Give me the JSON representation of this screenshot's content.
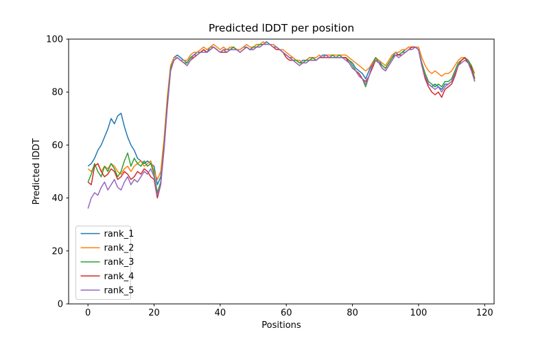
{
  "chart_data": {
    "type": "line",
    "title": "Predicted lDDT per position",
    "xlabel": "Positions",
    "ylabel": "Predicted lDDT",
    "x_is_index": true,
    "xlim": [
      -5.85,
      122.85
    ],
    "ylim": [
      0,
      100
    ],
    "xticks": [
      0,
      20,
      40,
      60,
      80,
      100,
      120
    ],
    "yticks": [
      0,
      20,
      40,
      60,
      80,
      100
    ],
    "grid": false,
    "legend_position": "lower left",
    "legend_frame_color": "#cccccc",
    "series": [
      {
        "name": "rank_1",
        "color": "#1f77b4",
        "values": [
          52,
          53,
          55,
          58,
          60,
          63,
          66,
          70,
          68,
          71,
          72,
          67,
          63,
          60,
          58,
          55,
          54,
          53,
          54,
          53,
          52,
          45,
          48,
          61,
          76,
          89,
          93,
          94,
          93,
          92,
          91,
          93,
          94,
          95,
          95,
          96,
          95,
          97,
          97,
          96,
          95,
          96,
          96,
          96,
          97,
          96,
          96,
          97,
          97,
          96,
          97,
          98,
          98,
          98,
          99,
          98,
          98,
          97,
          96,
          95,
          94,
          93,
          93,
          92,
          91,
          92,
          92,
          93,
          93,
          92,
          93,
          94,
          94,
          93,
          94,
          94,
          94,
          93,
          93,
          92,
          91,
          89,
          88,
          87,
          85,
          88,
          91,
          93,
          92,
          90,
          89,
          91,
          93,
          95,
          94,
          95,
          96,
          97,
          97,
          97,
          96,
          90,
          86,
          83,
          82,
          83,
          82,
          81,
          83,
          83,
          84,
          87,
          90,
          92,
          93,
          92,
          89,
          85
        ]
      },
      {
        "name": "rank_2",
        "color": "#ff7f0e",
        "values": [
          51,
          50,
          52,
          53,
          50,
          52,
          51,
          53,
          52,
          50,
          49,
          51,
          52,
          50,
          52,
          53,
          54,
          52,
          53,
          54,
          50,
          47,
          50,
          62,
          78,
          90,
          93,
          93,
          92,
          92,
          92,
          94,
          95,
          95,
          96,
          97,
          96,
          97,
          98,
          97,
          96,
          97,
          96,
          97,
          97,
          96,
          96,
          97,
          98,
          97,
          97,
          98,
          98,
          99,
          98,
          98,
          98,
          97,
          96,
          96,
          95,
          94,
          93,
          92,
          92,
          91,
          92,
          93,
          93,
          93,
          94,
          93,
          94,
          94,
          94,
          94,
          94,
          94,
          94,
          93,
          92,
          91,
          90,
          89,
          88,
          89,
          91,
          93,
          92,
          91,
          90,
          92,
          94,
          95,
          95,
          96,
          96,
          97,
          97,
          97,
          97,
          93,
          90,
          88,
          87,
          88,
          87,
          86,
          87,
          87,
          88,
          90,
          92,
          93,
          93,
          91,
          90,
          87
        ]
      },
      {
        "name": "rank_3",
        "color": "#2ca02c",
        "values": [
          46,
          49,
          53,
          50,
          48,
          52,
          50,
          53,
          51,
          48,
          50,
          54,
          57,
          52,
          55,
          53,
          52,
          54,
          52,
          53,
          49,
          42,
          46,
          60,
          76,
          89,
          92,
          93,
          92,
          91,
          91,
          93,
          94,
          94,
          95,
          96,
          95,
          96,
          97,
          96,
          95,
          96,
          95,
          96,
          97,
          96,
          95,
          96,
          97,
          96,
          97,
          97,
          98,
          98,
          98,
          98,
          97,
          97,
          96,
          95,
          94,
          93,
          92,
          92,
          91,
          91,
          92,
          92,
          93,
          92,
          93,
          93,
          94,
          93,
          94,
          93,
          94,
          93,
          93,
          92,
          90,
          88,
          87,
          85,
          82,
          86,
          90,
          93,
          91,
          90,
          89,
          91,
          93,
          94,
          94,
          95,
          95,
          96,
          97,
          97,
          96,
          91,
          87,
          84,
          83,
          82,
          83,
          82,
          84,
          84,
          85,
          88,
          91,
          92,
          93,
          92,
          90,
          85
        ]
      },
      {
        "name": "rank_4",
        "color": "#d62728",
        "values": [
          46,
          45,
          52,
          53,
          50,
          48,
          49,
          51,
          50,
          47,
          48,
          50,
          49,
          47,
          48,
          50,
          49,
          51,
          50,
          48,
          47,
          40,
          45,
          59,
          75,
          88,
          92,
          93,
          92,
          91,
          90,
          92,
          93,
          94,
          95,
          96,
          95,
          96,
          97,
          96,
          95,
          95,
          95,
          96,
          96,
          96,
          95,
          96,
          97,
          96,
          96,
          97,
          97,
          98,
          98,
          98,
          97,
          96,
          96,
          95,
          93,
          92,
          92,
          91,
          90,
          91,
          91,
          92,
          92,
          92,
          93,
          93,
          93,
          93,
          93,
          93,
          93,
          93,
          93,
          91,
          89,
          88,
          87,
          85,
          84,
          86,
          89,
          92,
          91,
          89,
          88,
          90,
          92,
          94,
          94,
          94,
          95,
          96,
          97,
          97,
          96,
          90,
          85,
          82,
          80,
          79,
          80,
          78,
          81,
          82,
          83,
          86,
          90,
          92,
          93,
          91,
          89,
          84
        ]
      },
      {
        "name": "rank_5",
        "color": "#9467bd",
        "values": [
          36,
          40,
          42,
          41,
          44,
          46,
          43,
          45,
          47,
          44,
          43,
          46,
          48,
          45,
          47,
          46,
          48,
          50,
          49,
          51,
          48,
          41,
          45,
          58,
          74,
          88,
          92,
          93,
          92,
          91,
          90,
          92,
          94,
          94,
          95,
          95,
          95,
          96,
          97,
          96,
          95,
          96,
          95,
          96,
          96,
          96,
          95,
          96,
          97,
          96,
          96,
          97,
          97,
          98,
          98,
          98,
          97,
          97,
          96,
          95,
          94,
          93,
          92,
          91,
          90,
          91,
          91,
          92,
          92,
          92,
          93,
          93,
          94,
          93,
          93,
          93,
          93,
          93,
          92,
          91,
          89,
          88,
          86,
          85,
          83,
          86,
          90,
          92,
          91,
          89,
          88,
          90,
          92,
          94,
          93,
          94,
          95,
          96,
          96,
          97,
          96,
          90,
          86,
          83,
          82,
          81,
          82,
          80,
          82,
          83,
          84,
          87,
          90,
          91,
          92,
          91,
          88,
          84
        ]
      }
    ]
  }
}
